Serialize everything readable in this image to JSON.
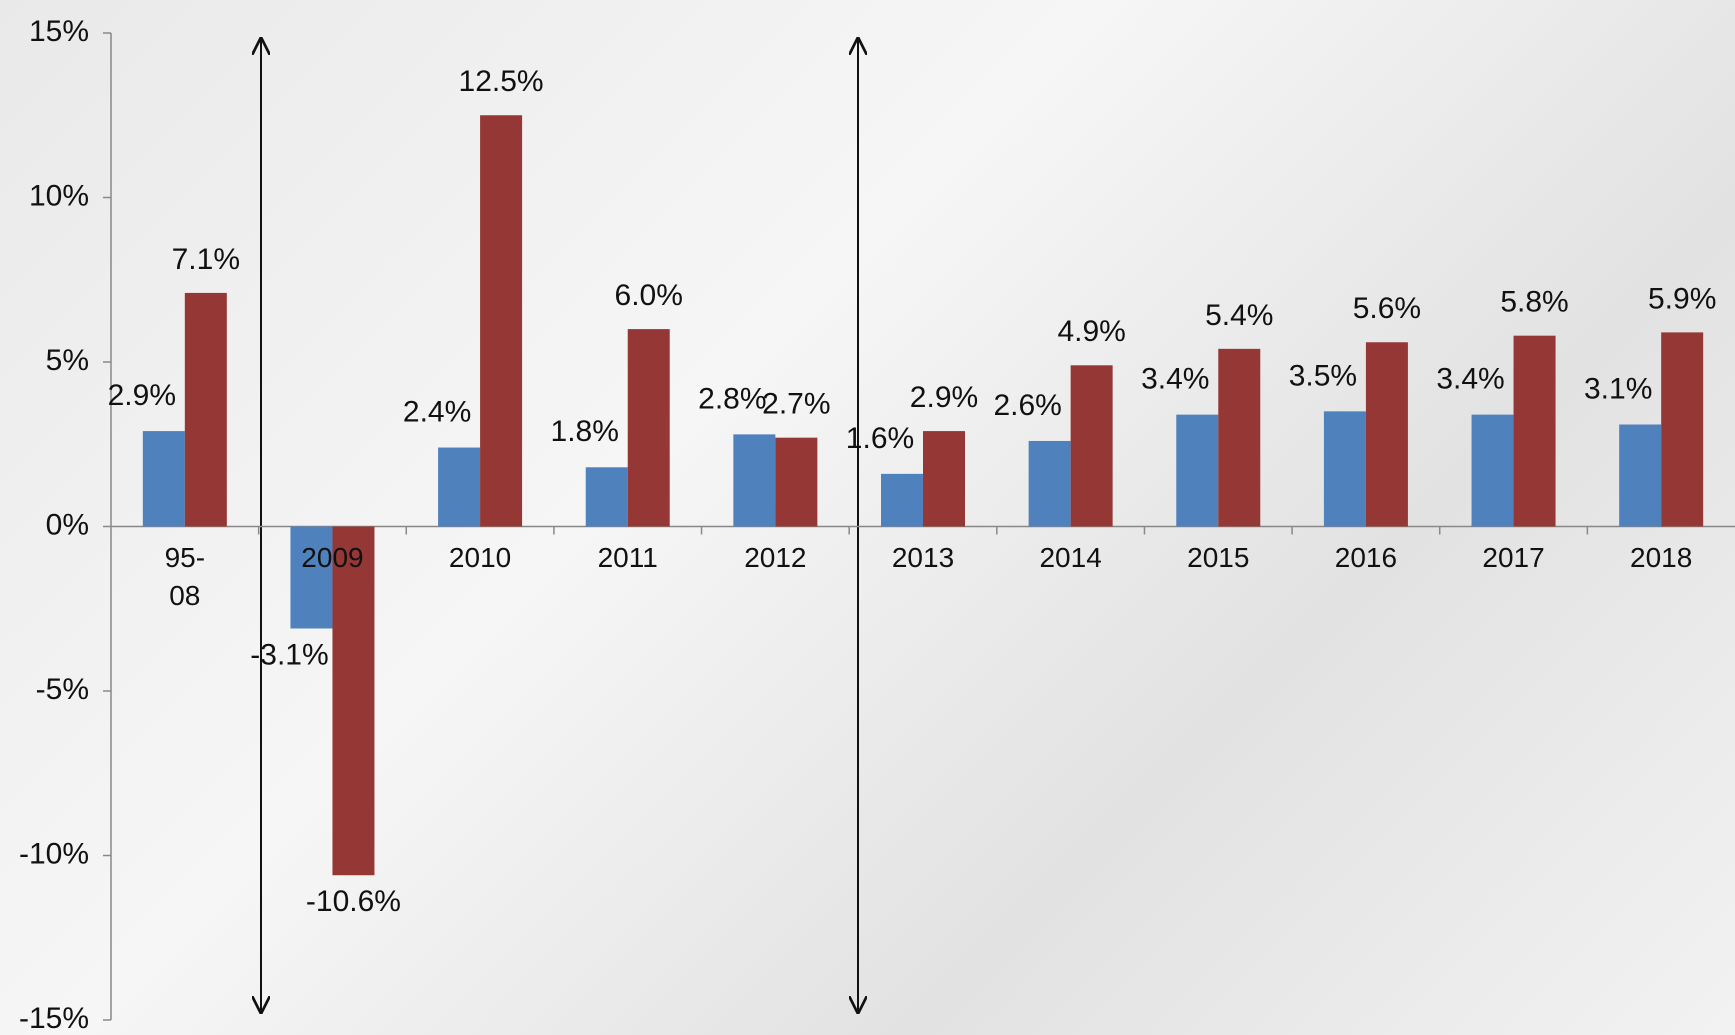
{
  "chart_data": {
    "type": "bar",
    "categories": [
      "95-08",
      "2009",
      "2010",
      "2011",
      "2012",
      "2013",
      "2014",
      "2015",
      "2016",
      "2017",
      "2018"
    ],
    "series": [
      {
        "color": "#4f81bd",
        "values": [
          2.9,
          -3.1,
          2.4,
          1.8,
          2.8,
          1.6,
          2.6,
          3.4,
          3.5,
          3.4,
          3.1
        ],
        "value_labels": [
          "2.9%",
          "-3.1%",
          "2.4%",
          "1.8%",
          "2.8%",
          "1.6%",
          "2.6%",
          "3.4%",
          "3.5%",
          "3.4%",
          "3.1%"
        ]
      },
      {
        "color": "#953735",
        "values": [
          7.1,
          -10.6,
          12.5,
          6.0,
          2.7,
          2.9,
          4.9,
          5.4,
          5.6,
          5.8,
          5.9
        ],
        "value_labels": [
          "7.1%",
          "-10.6%",
          "12.5%",
          "6.0%",
          "2.7%",
          "2.9%",
          "4.9%",
          "5.4%",
          "5.6%",
          "5.8%",
          "5.9%"
        ]
      }
    ],
    "ylim": [
      -15,
      15
    ],
    "yticks": [
      {
        "value": -15,
        "label": "-15%"
      },
      {
        "value": -10,
        "label": "-10%"
      },
      {
        "value": -5,
        "label": "-5%"
      },
      {
        "value": 0,
        "label": "0%"
      },
      {
        "value": 5,
        "label": "5%"
      },
      {
        "value": 10,
        "label": "10%"
      },
      {
        "value": 15,
        "label": "15%"
      }
    ],
    "grid": false
  }
}
